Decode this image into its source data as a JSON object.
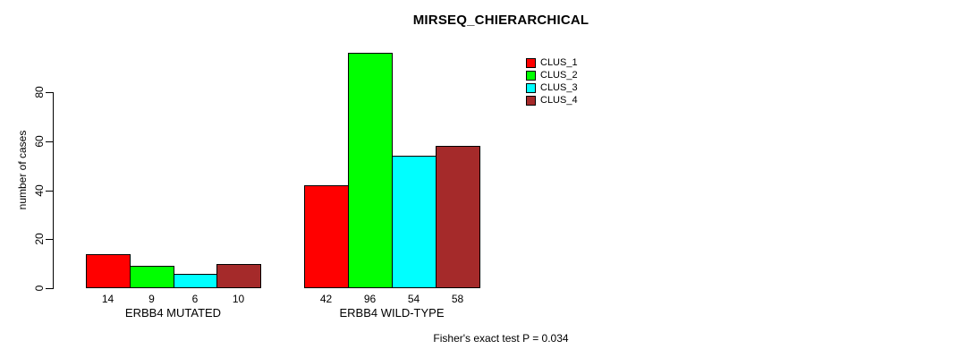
{
  "page": {
    "background": "#ffffff"
  },
  "chart_data": {
    "type": "bar",
    "title": "MIRSEQ_CHIERARCHICAL",
    "ylabel": "number of cases",
    "xlabel": "",
    "ylim": [
      0,
      80
    ],
    "yticks": [
      0,
      20,
      40,
      60,
      80
    ],
    "grid": false,
    "legend_position": "top-right",
    "categories": [
      "ERBB4 MUTATED",
      "ERBB4 WILD-TYPE"
    ],
    "series": [
      {
        "name": "CLUS_1",
        "color": "#ff0000",
        "values": [
          14,
          42
        ]
      },
      {
        "name": "CLUS_2",
        "color": "#00ff00",
        "values": [
          9,
          96
        ]
      },
      {
        "name": "CLUS_3",
        "color": "#00ffff",
        "values": [
          6,
          54
        ]
      },
      {
        "name": "CLUS_4",
        "color": "#a52a2a",
        "values": [
          10,
          58
        ]
      }
    ],
    "bar_value_labels": {
      "ERBB4 MUTATED": [
        14,
        9,
        6,
        10
      ],
      "ERBB4 WILD-TYPE": [
        42,
        96,
        54,
        58
      ]
    },
    "annotation": "Fisher's exact test P = 0.034"
  }
}
